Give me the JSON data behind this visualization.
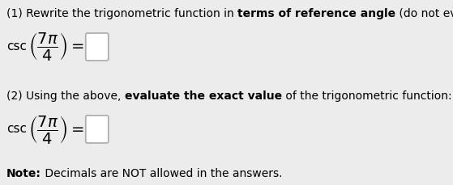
{
  "background_color": "#ececec",
  "fig_width": 5.59,
  "fig_height": 2.29,
  "dpi": 100,
  "line1_normal1": "(1) Rewrite the trigonometric function in ",
  "line1_bold": "terms of reference angle",
  "line1_normal2": " (do not evaluate):",
  "line2_normal1": "(2) Using the above, ",
  "line2_bold": "evaluate the exact value",
  "line2_normal2": " of the trigonometric function:",
  "note_bold": "Note:",
  "note_normal": " Decimals are NOT allowed in the answers.",
  "csc_text": "csc",
  "math_expr": "$\\left(\\dfrac{7\\pi}{4}\\right) =$",
  "text_fontsize": 10,
  "math_fontsize": 14,
  "csc_fontsize": 11,
  "box_color": "#aaaaaa",
  "box_facecolor": "#ffffff"
}
